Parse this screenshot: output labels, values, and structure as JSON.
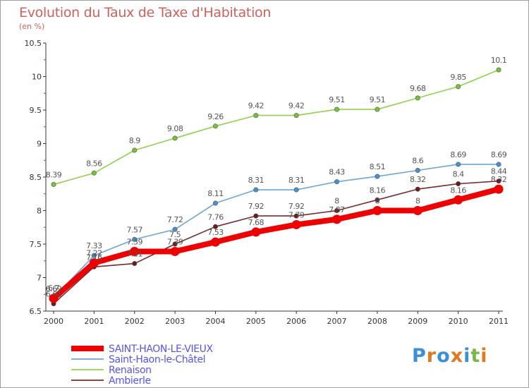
{
  "title": "Evolution du Taux de Taxe d'Habitation",
  "subtitle": "(en %)",
  "logo": {
    "text": "Proxiti",
    "letters": [
      {
        "ch": "P",
        "color": "#3a8fd6"
      },
      {
        "ch": "r",
        "color": "#e07a1a"
      },
      {
        "ch": "o",
        "color": "#3a8fd6"
      },
      {
        "ch": "x",
        "color": "#e07a1a"
      },
      {
        "ch": "i",
        "color": "#3a8fd6"
      },
      {
        "ch": "t",
        "color": "#7ab648"
      },
      {
        "ch": "i",
        "color": "#e07a1a"
      }
    ]
  },
  "chart_data": {
    "type": "line",
    "x": [
      "2000",
      "2001",
      "2002",
      "2003",
      "2004",
      "2005",
      "2006",
      "2007",
      "2008",
      "2009",
      "2010",
      "2011"
    ],
    "ylim": [
      6.5,
      10.5
    ],
    "yticks": [
      "6.5",
      "7",
      "7.5",
      "8",
      "8.5",
      "9",
      "9.5",
      "10",
      "10.5"
    ],
    "grid": false,
    "legend_position": "bottom-left",
    "series": [
      {
        "name": "Renaison",
        "color": "#8fd24f",
        "marker": "#7ac13a",
        "values": [
          8.39,
          8.56,
          8.9,
          9.08,
          9.26,
          9.42,
          9.42,
          9.51,
          9.51,
          9.68,
          9.85,
          10.1
        ],
        "labels": [
          "8.39",
          "8.56",
          "8.9",
          "9.08",
          "9.26",
          "9.42",
          "9.42",
          "9.51",
          "9.51",
          "9.68",
          "9.85",
          "10.1"
        ]
      },
      {
        "name": "Saint-Haon-le-Châtel",
        "color": "#6aa6d6",
        "marker": "#4a90d0",
        "values": [
          6.7,
          7.33,
          7.57,
          7.72,
          8.11,
          8.31,
          8.31,
          8.43,
          8.51,
          8.6,
          8.69,
          8.69
        ],
        "labels": [
          "6.7",
          "7.33",
          "7.57",
          "7.72",
          "8.11",
          "8.31",
          "8.31",
          "8.43",
          "8.51",
          "8.6",
          "8.69",
          "8.69"
        ]
      },
      {
        "name": "Ambierle",
        "color": "#7a2a2a",
        "marker": "#6a1a1a",
        "values": [
          6.61,
          7.16,
          7.21,
          7.5,
          7.76,
          7.92,
          7.92,
          8,
          8.16,
          8.32,
          8.4,
          8.44
        ],
        "labels": [
          "6.61",
          "7.16",
          "7.21",
          "7.5",
          "7.76",
          "7.92",
          "7.92",
          "8",
          "8.16",
          "8.32",
          "8.4",
          "8.44"
        ]
      },
      {
        "name": "SAINT-HAON-LE-VIEUX",
        "color": "#ee0000",
        "marker": "#ee0000",
        "values": [
          6.69,
          7.22,
          7.39,
          7.39,
          7.53,
          7.68,
          7.79,
          7.87,
          8,
          8,
          8.16,
          8.32
        ],
        "labels": [
          "6.69",
          "7.22",
          "7.39",
          "7.39",
          "7.53",
          "7.68",
          "7.79",
          "7.87",
          "8",
          "8",
          "8.16",
          "8.32"
        ]
      }
    ],
    "legend": [
      {
        "name": "SAINT-HAON-LE-VIEUX",
        "color": "#ee0000",
        "thick": true
      },
      {
        "name": "Saint-Haon-le-Châtel",
        "color": "#6aa6d6",
        "thick": false
      },
      {
        "name": "Renaison",
        "color": "#8fd24f",
        "thick": false
      },
      {
        "name": "Ambierle",
        "color": "#7a2a2a",
        "thick": false
      }
    ]
  }
}
